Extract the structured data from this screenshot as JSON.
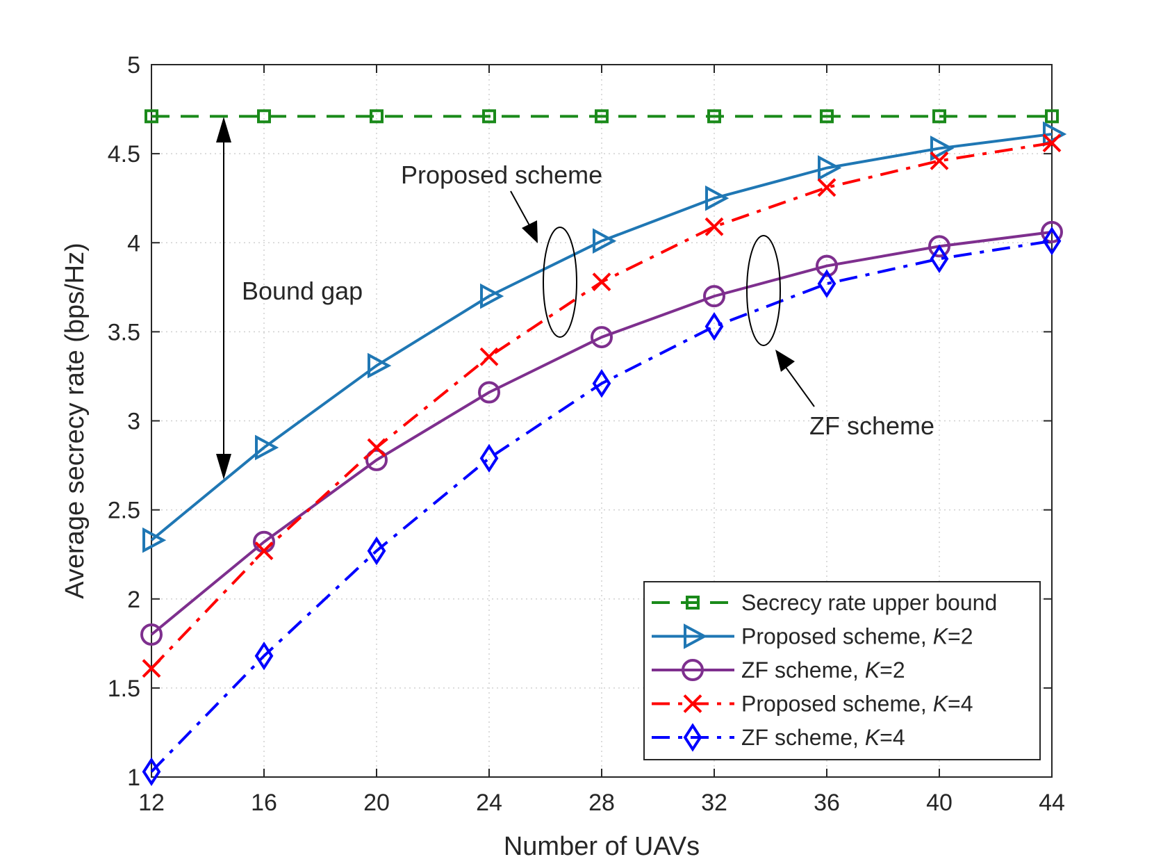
{
  "chart_data": {
    "type": "line",
    "title": "",
    "xlabel": "Number of UAVs",
    "ylabel": "Average secrecy rate (bps/Hz)",
    "x": [
      12,
      16,
      20,
      24,
      28,
      32,
      36,
      40,
      44
    ],
    "xlim": [
      12,
      44
    ],
    "ylim": [
      1,
      5
    ],
    "xticks": [
      12,
      16,
      20,
      24,
      28,
      32,
      36,
      40,
      44
    ],
    "yticks": [
      1,
      1.5,
      2,
      2.5,
      3,
      3.5,
      4,
      4.5,
      5
    ],
    "grid": true,
    "legend_position": "bottom-right",
    "series": [
      {
        "name": "Secrecy rate upper bound",
        "label_main": "Secrecy rate upper bound",
        "label_var": "",
        "label_val": "",
        "color": "#1a8a1a",
        "dash": "dash",
        "marker": "square",
        "values": [
          4.71,
          4.71,
          4.71,
          4.71,
          4.71,
          4.71,
          4.71,
          4.71,
          4.71
        ]
      },
      {
        "name": "Proposed scheme, K=2",
        "label_main": "Proposed scheme, ",
        "label_var": "K",
        "label_val": "=2",
        "color": "#1f77b4",
        "dash": "solid",
        "marker": "triangle-right",
        "values": [
          2.33,
          2.85,
          3.31,
          3.7,
          4.01,
          4.25,
          4.42,
          4.53,
          4.61
        ]
      },
      {
        "name": "ZF scheme, K=2",
        "label_main": "ZF scheme, ",
        "label_var": "K",
        "label_val": "=2",
        "color": "#7e2f8e",
        "dash": "solid",
        "marker": "circle",
        "values": [
          1.8,
          2.32,
          2.78,
          3.16,
          3.47,
          3.7,
          3.87,
          3.98,
          4.06
        ]
      },
      {
        "name": "Proposed scheme, K=4",
        "label_main": "Proposed scheme, ",
        "label_var": "K",
        "label_val": "=4",
        "color": "#ff0000",
        "dash": "dashdot",
        "marker": "x",
        "values": [
          1.61,
          2.27,
          2.85,
          3.36,
          3.78,
          4.09,
          4.31,
          4.46,
          4.56
        ]
      },
      {
        "name": "ZF scheme, K=4",
        "label_main": "ZF scheme, ",
        "label_var": "K",
        "label_val": "=4",
        "color": "#0000ff",
        "dash": "dashdot",
        "marker": "diamond",
        "values": [
          1.03,
          1.68,
          2.27,
          2.79,
          3.21,
          3.53,
          3.77,
          3.91,
          4.01
        ]
      }
    ],
    "annotations": [
      {
        "text": "Proposed scheme"
      },
      {
        "text": "ZF scheme"
      },
      {
        "text": "Bound gap"
      }
    ]
  }
}
